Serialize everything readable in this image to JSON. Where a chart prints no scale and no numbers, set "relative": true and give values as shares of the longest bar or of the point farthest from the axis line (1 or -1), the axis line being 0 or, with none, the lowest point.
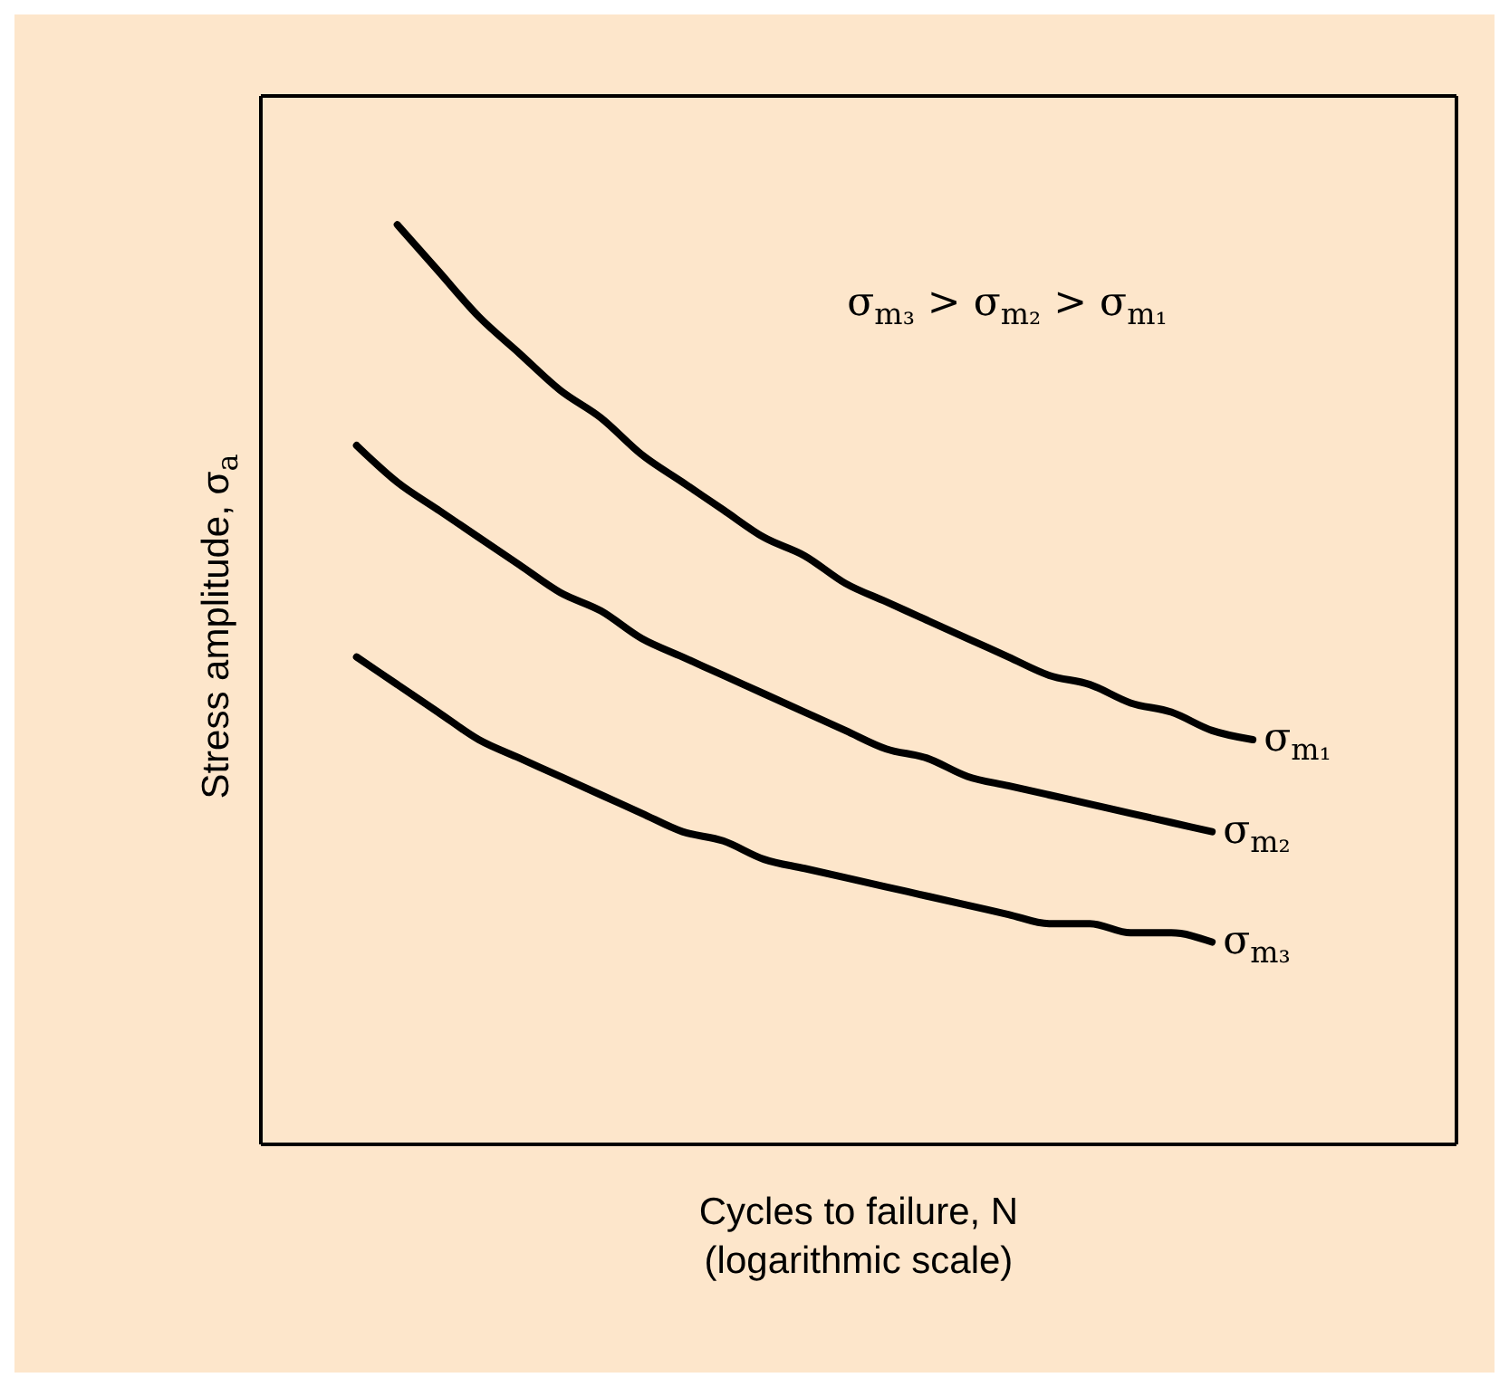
{
  "chart_data": {
    "type": "line",
    "relative": true,
    "xlabel": "Cycles to failure, N\n(logarithmic scale)",
    "ylabel": "Stress amplitude, σ$_{a}$",
    "annotations": [
      "σ$_{m₃}$ > σ$_{m₂}$ > σ$_{m₁}$"
    ],
    "legend": false,
    "marker": "none",
    "line_style": "solid",
    "categories": [
      null,
      null,
      null,
      null,
      null,
      null,
      null,
      null,
      null,
      null,
      null,
      null,
      null,
      null,
      null,
      null,
      null,
      null,
      null,
      null,
      null,
      null,
      null
    ],
    "series": [
      {
        "name": "σ$_{m₁}$",
        "color": "#000000",
        "values": [
          null,
          1.0,
          0.95,
          0.9,
          0.86,
          0.82,
          0.79,
          0.75,
          0.72,
          0.69,
          0.66,
          0.64,
          0.61,
          0.59,
          0.57,
          0.55,
          0.53,
          0.51,
          0.5,
          0.48,
          0.47,
          0.45,
          0.44
        ]
      },
      {
        "name": "σ$_{m₂}$",
        "color": "#000000",
        "values": [
          0.76,
          0.72,
          0.69,
          0.66,
          0.63,
          0.6,
          0.58,
          0.55,
          0.53,
          0.51,
          0.49,
          0.47,
          0.45,
          0.43,
          0.42,
          0.4,
          0.39,
          0.38,
          0.37,
          0.36,
          0.35,
          0.34,
          null
        ]
      },
      {
        "name": "σ$_{m₃}$",
        "color": "#000000",
        "values": [
          0.53,
          0.5,
          0.47,
          0.44,
          0.42,
          0.4,
          0.38,
          0.36,
          0.34,
          0.33,
          0.31,
          0.3,
          0.29,
          0.28,
          0.27,
          0.26,
          0.25,
          0.24,
          0.24,
          0.23,
          0.23,
          0.22,
          null
        ]
      }
    ]
  }
}
